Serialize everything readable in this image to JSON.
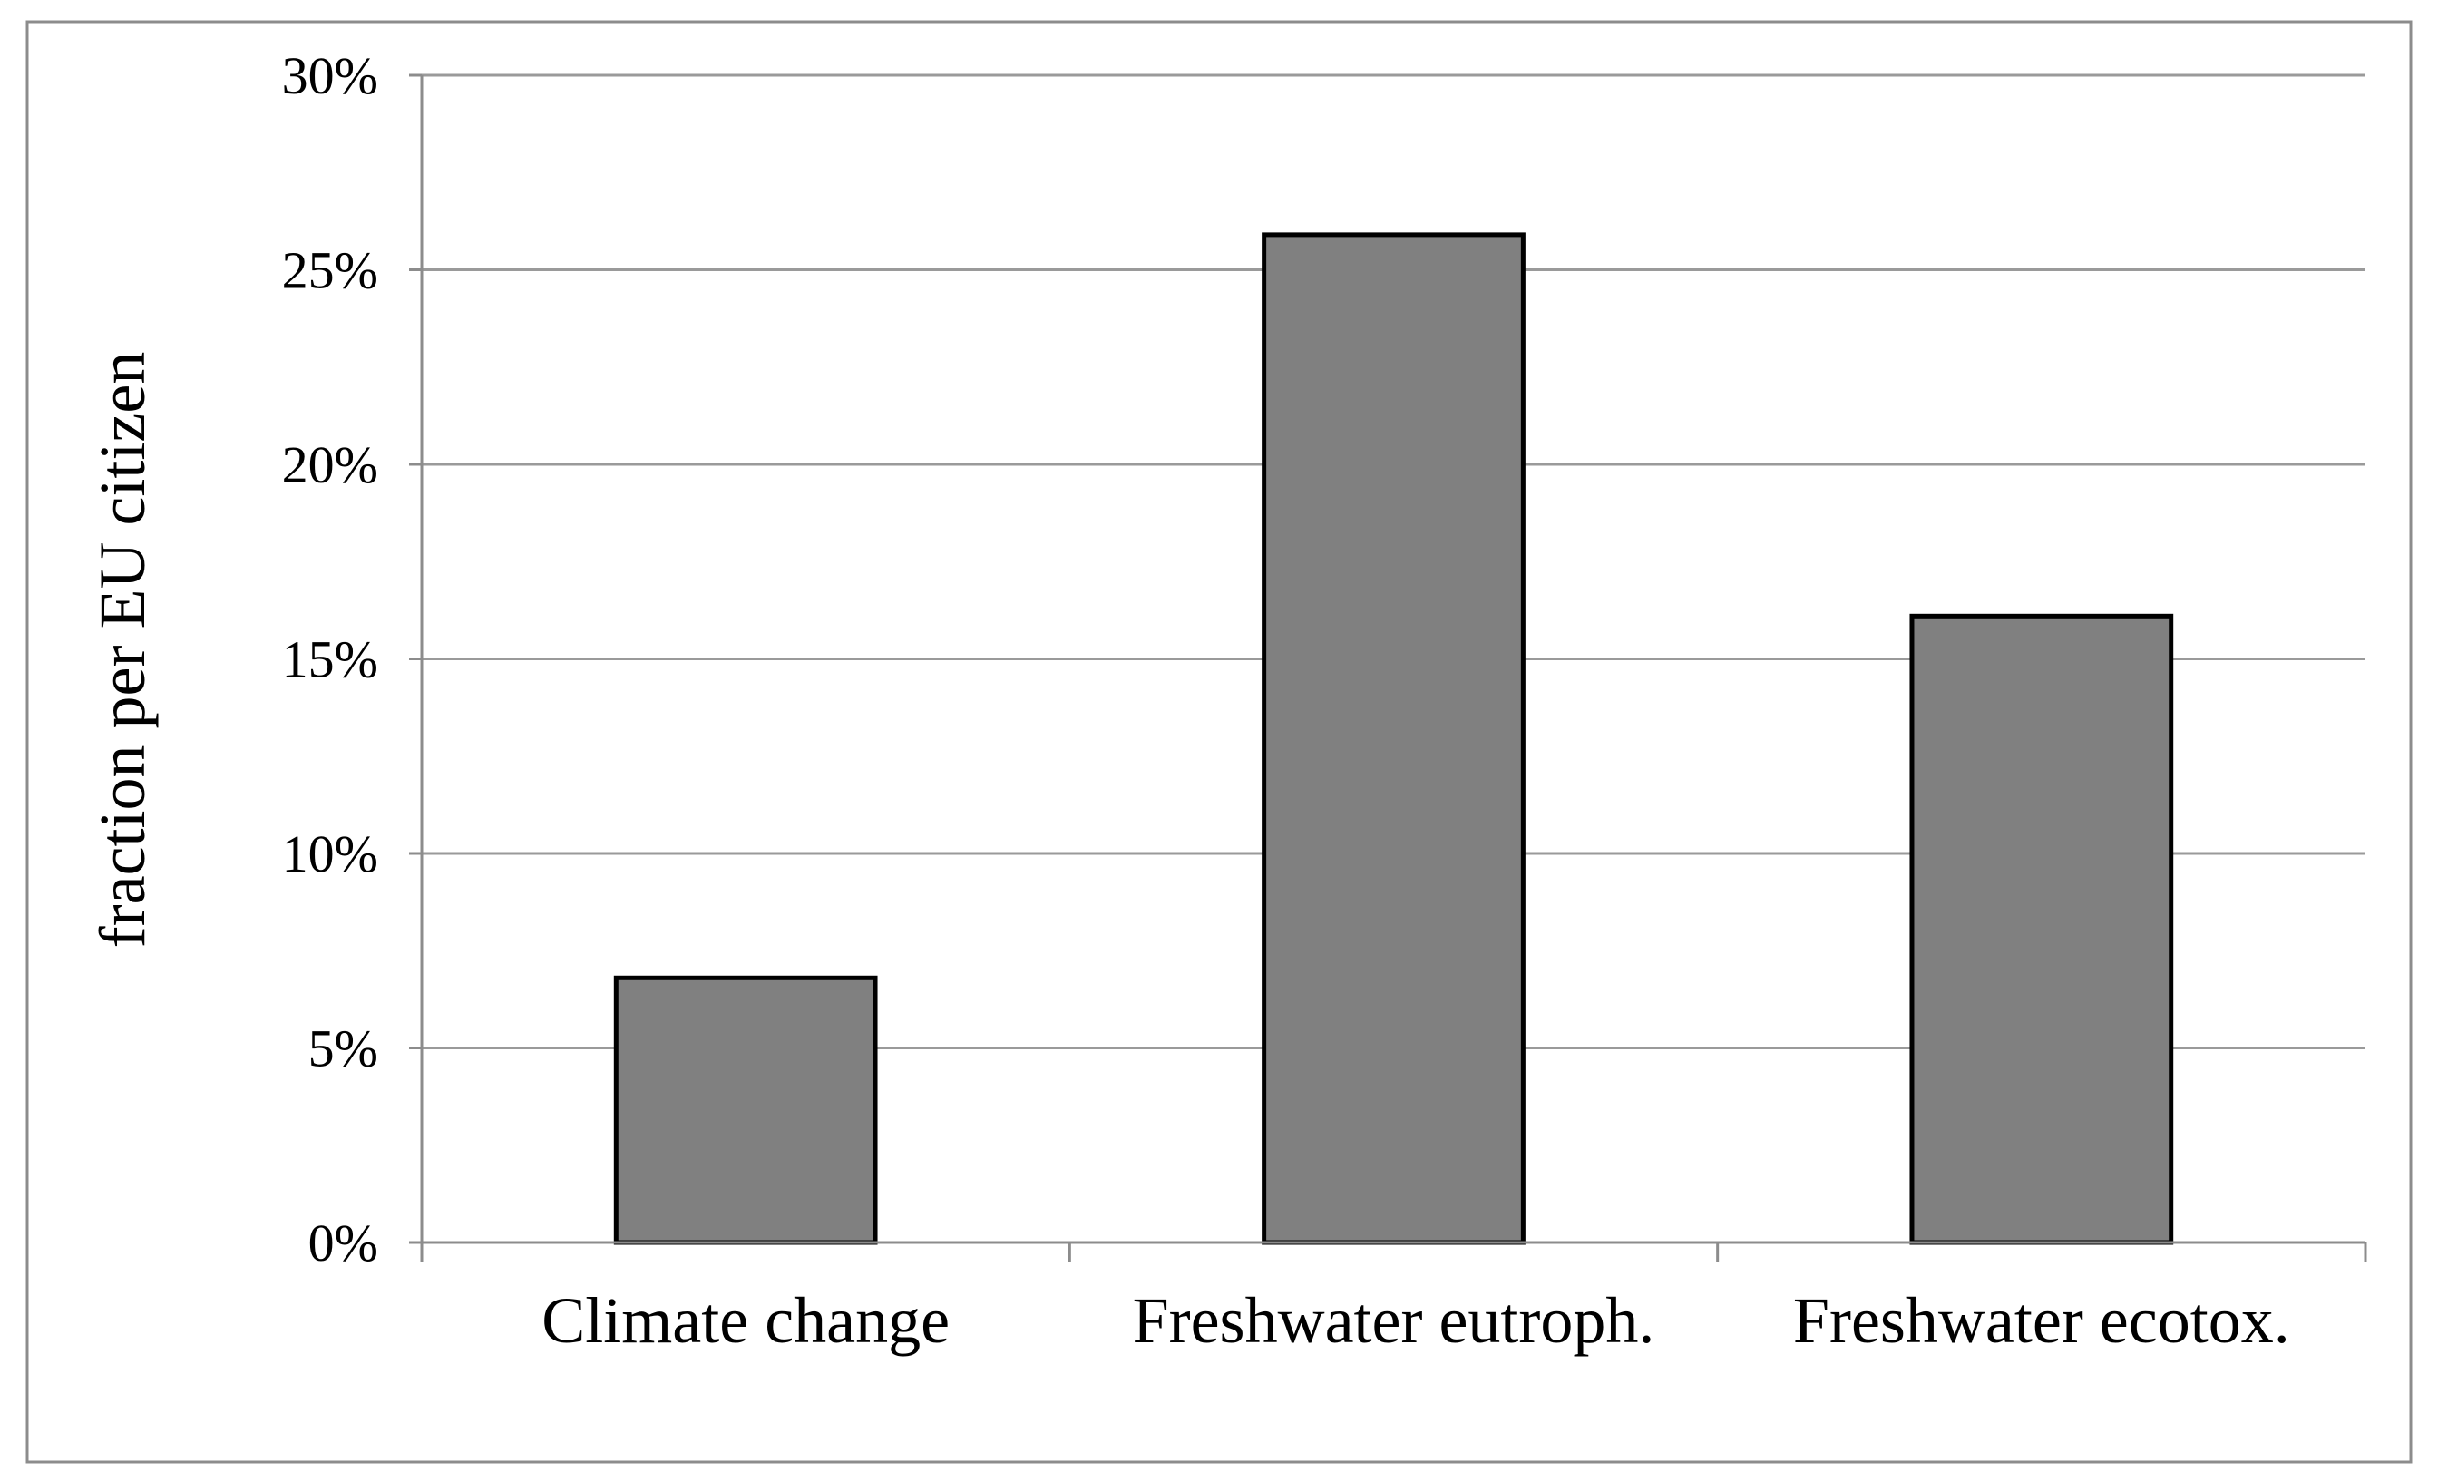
{
  "chart_data": {
    "type": "bar",
    "title": "",
    "xlabel": "",
    "ylabel": "fraction per EU citizen",
    "categories": [
      "Climate change",
      "Freshwater eutroph.",
      "Freshwater ecotox."
    ],
    "values": [
      0.068,
      0.259,
      0.161
    ],
    "ylim": [
      0,
      0.3
    ],
    "yticks": [
      0,
      0.05,
      0.1,
      0.15,
      0.2,
      0.25,
      0.3
    ],
    "ytick_labels": [
      "0%",
      "5%",
      "10%",
      "15%",
      "20%",
      "25%",
      "30%"
    ],
    "grid": true,
    "legend": "none",
    "bar_color": "#808080",
    "bar_edge_color": "#000000"
  }
}
